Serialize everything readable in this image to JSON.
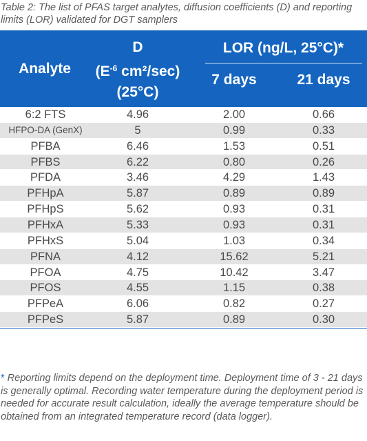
{
  "caption": "Table 2: The list of PFAS target analytes, diffusion coefficients (D) and reporting limits (LOR) validated for DGT samplers",
  "header": {
    "analyte": "Analyte",
    "d_symbol": "D",
    "d_unit_prefix": "(E",
    "d_unit_exp": "-6",
    "d_unit_suffix": " cm²/sec)",
    "d_temp": "(25°C)",
    "lor": "LOR (ng/L, 25°C)*",
    "days7": "7 days",
    "days21": "21 days"
  },
  "rows": [
    {
      "analyte": "6:2 FTS",
      "d": "4.96",
      "lor7": "2.00",
      "lor21": "0.66"
    },
    {
      "analyte": "HFPO-DA (GenX)",
      "d": "5",
      "lor7": "0.99",
      "lor21": "0.33"
    },
    {
      "analyte": "PFBA",
      "d": "6.46",
      "lor7": "1.53",
      "lor21": "0.51"
    },
    {
      "analyte": "PFBS",
      "d": "6.22",
      "lor7": "0.80",
      "lor21": "0.26"
    },
    {
      "analyte": "PFDA",
      "d": "3.46",
      "lor7": "4.29",
      "lor21": "1.43"
    },
    {
      "analyte": "PFHpA",
      "d": "5.87",
      "lor7": "0.89",
      "lor21": "0.89"
    },
    {
      "analyte": "PFHpS",
      "d": "5.62",
      "lor7": "0.93",
      "lor21": "0.31"
    },
    {
      "analyte": "PFHxA",
      "d": "5.33",
      "lor7": "0.93",
      "lor21": "0.31"
    },
    {
      "analyte": "PFHxS",
      "d": "5.04",
      "lor7": "1.03",
      "lor21": "0.34"
    },
    {
      "analyte": "PFNA",
      "d": "4.12",
      "lor7": "15.62",
      "lor21": "5.21"
    },
    {
      "analyte": "PFOA",
      "d": "4.75",
      "lor7": "10.42",
      "lor21": "3.47"
    },
    {
      "analyte": "PFOS",
      "d": "4.55",
      "lor7": "1.15",
      "lor21": "0.38"
    },
    {
      "analyte": "PFPeA",
      "d": "6.06",
      "lor7": "0.82",
      "lor21": "0.27"
    },
    {
      "analyte": "PFPeS",
      "d": "5.87",
      "lor7": "0.89",
      "lor21": "0.30"
    }
  ],
  "footnote": {
    "star": "*",
    "text": " Reporting limits depend on the deployment time. Deployment time of 3 - 21 days is generally optimal. Recording water temperature during the deployment period is needed for accurate result calculation, ideally the average temperature should be obtained from an integrated temperature record (data logger)."
  },
  "colors": {
    "header_bg": "#1565c0",
    "row_alt_bg": "#e3e3e3",
    "text": "#4a4a4a"
  }
}
